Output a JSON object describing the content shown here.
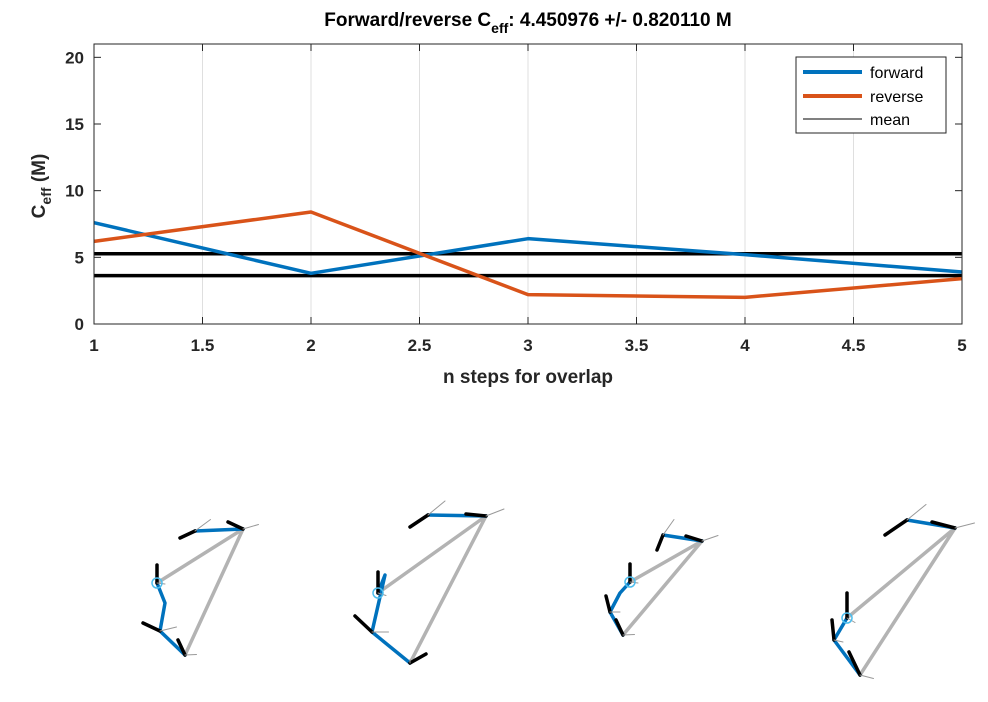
{
  "chart_data": {
    "type": "line",
    "title": "Forward/reverse C",
    "title_sub": "eff",
    "title_rest": ": 4.450976 +/- 0.820110 M",
    "xlabel": "n steps for overlap",
    "ylabel_main": "C",
    "ylabel_sub": "eff",
    "ylabel_unit": " (M)",
    "xlim": [
      1,
      5
    ],
    "ylim": [
      0,
      21
    ],
    "xticks": [
      "1",
      "1.5",
      "2",
      "2.5",
      "3",
      "3.5",
      "4",
      "4.5",
      "5"
    ],
    "yticks": [
      "0",
      "5",
      "10",
      "15",
      "20"
    ],
    "grid": "vertical",
    "legend_position": "top-right",
    "x": [
      1,
      2,
      3,
      4,
      5
    ],
    "series": [
      {
        "name": "forward",
        "color": "#0072BD",
        "values": [
          7.6,
          3.8,
          6.4,
          5.2,
          3.9
        ]
      },
      {
        "name": "reverse",
        "color": "#D95319",
        "values": [
          6.2,
          8.4,
          2.2,
          2.0,
          3.4
        ]
      }
    ],
    "mean": {
      "name": "mean",
      "color": "#000000",
      "lines": [
        5.27,
        3.63
      ]
    }
  },
  "diagram_colors": {
    "chain": "#0072BD",
    "link": "#b3b3b3",
    "frame": "#000000",
    "marker": "#4DBEEE"
  }
}
